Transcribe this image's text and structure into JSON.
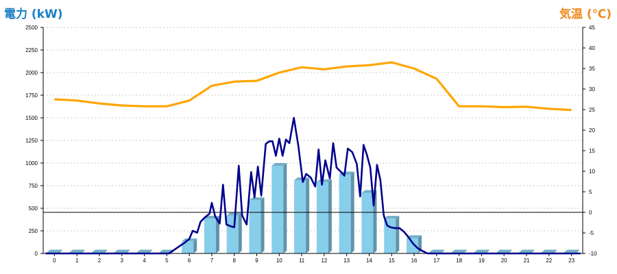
{
  "chart_data": {
    "type": "bar",
    "left_axis_title": "電力 (kW)",
    "right_axis_title": "気温 (℃)",
    "categories": [
      "0",
      "1",
      "2",
      "3",
      "4",
      "5",
      "6",
      "7",
      "8",
      "9",
      "10",
      "11",
      "12",
      "13",
      "14",
      "15",
      "16",
      "17",
      "18",
      "19",
      "20",
      "21",
      "22",
      "23"
    ],
    "y_left": {
      "min": 0,
      "max": 2500,
      "ticks": [
        0,
        250,
        500,
        750,
        1000,
        1250,
        1500,
        1750,
        2000,
        2250,
        2500
      ]
    },
    "y_right": {
      "min": -10,
      "max": 45,
      "ticks": [
        -10,
        -5,
        0,
        5,
        10,
        15,
        20,
        25,
        30,
        35,
        40,
        45
      ]
    },
    "grid": true,
    "bars": {
      "name": "hourly_power",
      "color": "#87ceeb",
      "values": [
        0,
        0,
        0,
        0,
        0,
        0,
        135,
        385,
        420,
        590,
        970,
        810,
        790,
        875,
        670,
        385,
        170,
        0,
        0,
        0,
        0,
        0,
        0,
        0
      ]
    },
    "temperature": {
      "color": "#ffa500",
      "axis": "right",
      "values": [
        27.5,
        27.2,
        26.5,
        26.0,
        25.8,
        25.8,
        27.2,
        30.8,
        31.8,
        32.0,
        34.0,
        35.3,
        34.8,
        35.5,
        35.8,
        36.5,
        35.0,
        32.5,
        25.8,
        25.8,
        25.6,
        25.7,
        25.2,
        24.9
      ]
    },
    "power_line": {
      "color": "#00008b",
      "axis": "left",
      "points": [
        [
          -0.4,
          0
        ],
        [
          5.1,
          0
        ],
        [
          5.5,
          70
        ],
        [
          5.8,
          120
        ],
        [
          6.0,
          160
        ],
        [
          6.15,
          250
        ],
        [
          6.35,
          230
        ],
        [
          6.5,
          350
        ],
        [
          6.7,
          400
        ],
        [
          6.9,
          440
        ],
        [
          7.0,
          560
        ],
        [
          7.15,
          410
        ],
        [
          7.35,
          330
        ],
        [
          7.5,
          760
        ],
        [
          7.65,
          320
        ],
        [
          7.85,
          300
        ],
        [
          8.0,
          290
        ],
        [
          8.2,
          970
        ],
        [
          8.35,
          420
        ],
        [
          8.55,
          320
        ],
        [
          8.75,
          900
        ],
        [
          8.9,
          620
        ],
        [
          9.05,
          960
        ],
        [
          9.2,
          640
        ],
        [
          9.4,
          1210
        ],
        [
          9.55,
          1240
        ],
        [
          9.7,
          1240
        ],
        [
          9.85,
          1080
        ],
        [
          10.0,
          1270
        ],
        [
          10.15,
          1080
        ],
        [
          10.3,
          1260
        ],
        [
          10.45,
          1220
        ],
        [
          10.65,
          1500
        ],
        [
          10.85,
          1190
        ],
        [
          11.05,
          790
        ],
        [
          11.2,
          880
        ],
        [
          11.4,
          840
        ],
        [
          11.6,
          740
        ],
        [
          11.75,
          1150
        ],
        [
          11.9,
          760
        ],
        [
          12.05,
          1030
        ],
        [
          12.25,
          830
        ],
        [
          12.4,
          1220
        ],
        [
          12.55,
          950
        ],
        [
          12.75,
          900
        ],
        [
          12.9,
          860
        ],
        [
          13.05,
          1160
        ],
        [
          13.25,
          1120
        ],
        [
          13.45,
          990
        ],
        [
          13.6,
          630
        ],
        [
          13.75,
          1200
        ],
        [
          13.9,
          1090
        ],
        [
          14.05,
          950
        ],
        [
          14.2,
          530
        ],
        [
          14.35,
          980
        ],
        [
          14.5,
          810
        ],
        [
          14.65,
          420
        ],
        [
          14.8,
          310
        ],
        [
          14.95,
          290
        ],
        [
          15.15,
          280
        ],
        [
          15.35,
          280
        ],
        [
          15.55,
          240
        ],
        [
          15.75,
          180
        ],
        [
          15.95,
          110
        ],
        [
          16.15,
          60
        ],
        [
          16.35,
          30
        ],
        [
          16.6,
          0
        ],
        [
          23.4,
          0
        ]
      ]
    },
    "zero_reference": {
      "axis": "right",
      "value": 0
    }
  }
}
